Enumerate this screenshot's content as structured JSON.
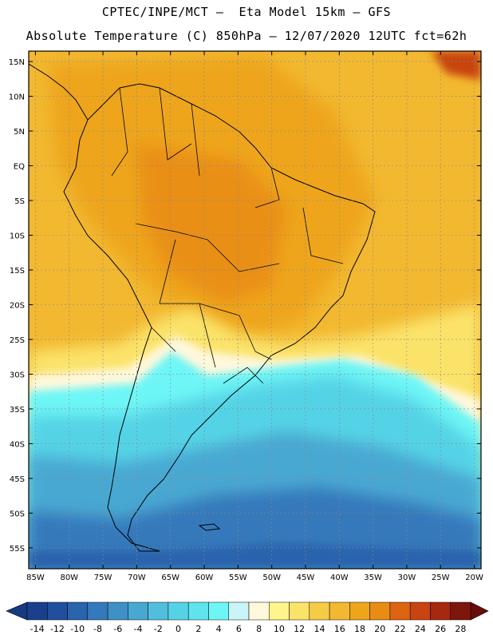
{
  "header": {
    "line1": "CPTEC/INPE/MCT –  Eta Model 15km – GFS",
    "line2": "Absolute Temperature (C) 850hPa – 12/07/2020 12UTC fct=62h"
  },
  "map": {
    "lat_labels": [
      "15N",
      "10N",
      "5N",
      "EQ",
      "5S",
      "10S",
      "15S",
      "20S",
      "25S",
      "30S",
      "35S",
      "40S",
      "45S",
      "50S",
      "55S"
    ],
    "lat_values": [
      15,
      10,
      5,
      0,
      -5,
      -10,
      -15,
      -20,
      -25,
      -30,
      -35,
      -40,
      -45,
      -50,
      -55
    ],
    "lon_labels": [
      "85W",
      "80W",
      "75W",
      "70W",
      "65W",
      "60W",
      "55W",
      "50W",
      "45W",
      "40W",
      "35W",
      "30W",
      "25W",
      "20W"
    ],
    "lon_values": [
      -85,
      -80,
      -75,
      -70,
      -65,
      -60,
      -55,
      -50,
      -45,
      -40,
      -35,
      -30,
      -25,
      -20
    ],
    "lon_range": [
      -86,
      -19
    ],
    "lat_range": [
      -58,
      16.5
    ]
  },
  "legend": {
    "labels": [
      "-14",
      "-12",
      "-10",
      "-8",
      "-6",
      "-4",
      "-2",
      "0",
      "2",
      "4",
      "6",
      "8",
      "10",
      "12",
      "14",
      "16",
      "18",
      "20",
      "22",
      "24",
      "26",
      "28"
    ],
    "colors": [
      "#1a3f8c",
      "#1f4f9e",
      "#2964ad",
      "#3479bb",
      "#3f90c6",
      "#48a8d2",
      "#4fbfdd",
      "#55d3e6",
      "#5fe4ee",
      "#6ef6f6",
      "#c9f4f8",
      "#fff8dc",
      "#fff58c",
      "#fbe36a",
      "#f6cc46",
      "#f2b830",
      "#eea51a",
      "#e98c14",
      "#dd6410",
      "#c84410",
      "#a6280e",
      "#7d160b"
    ],
    "left_arrow_color": "#173a80",
    "right_arrow_color": "#6a0c0a"
  }
}
